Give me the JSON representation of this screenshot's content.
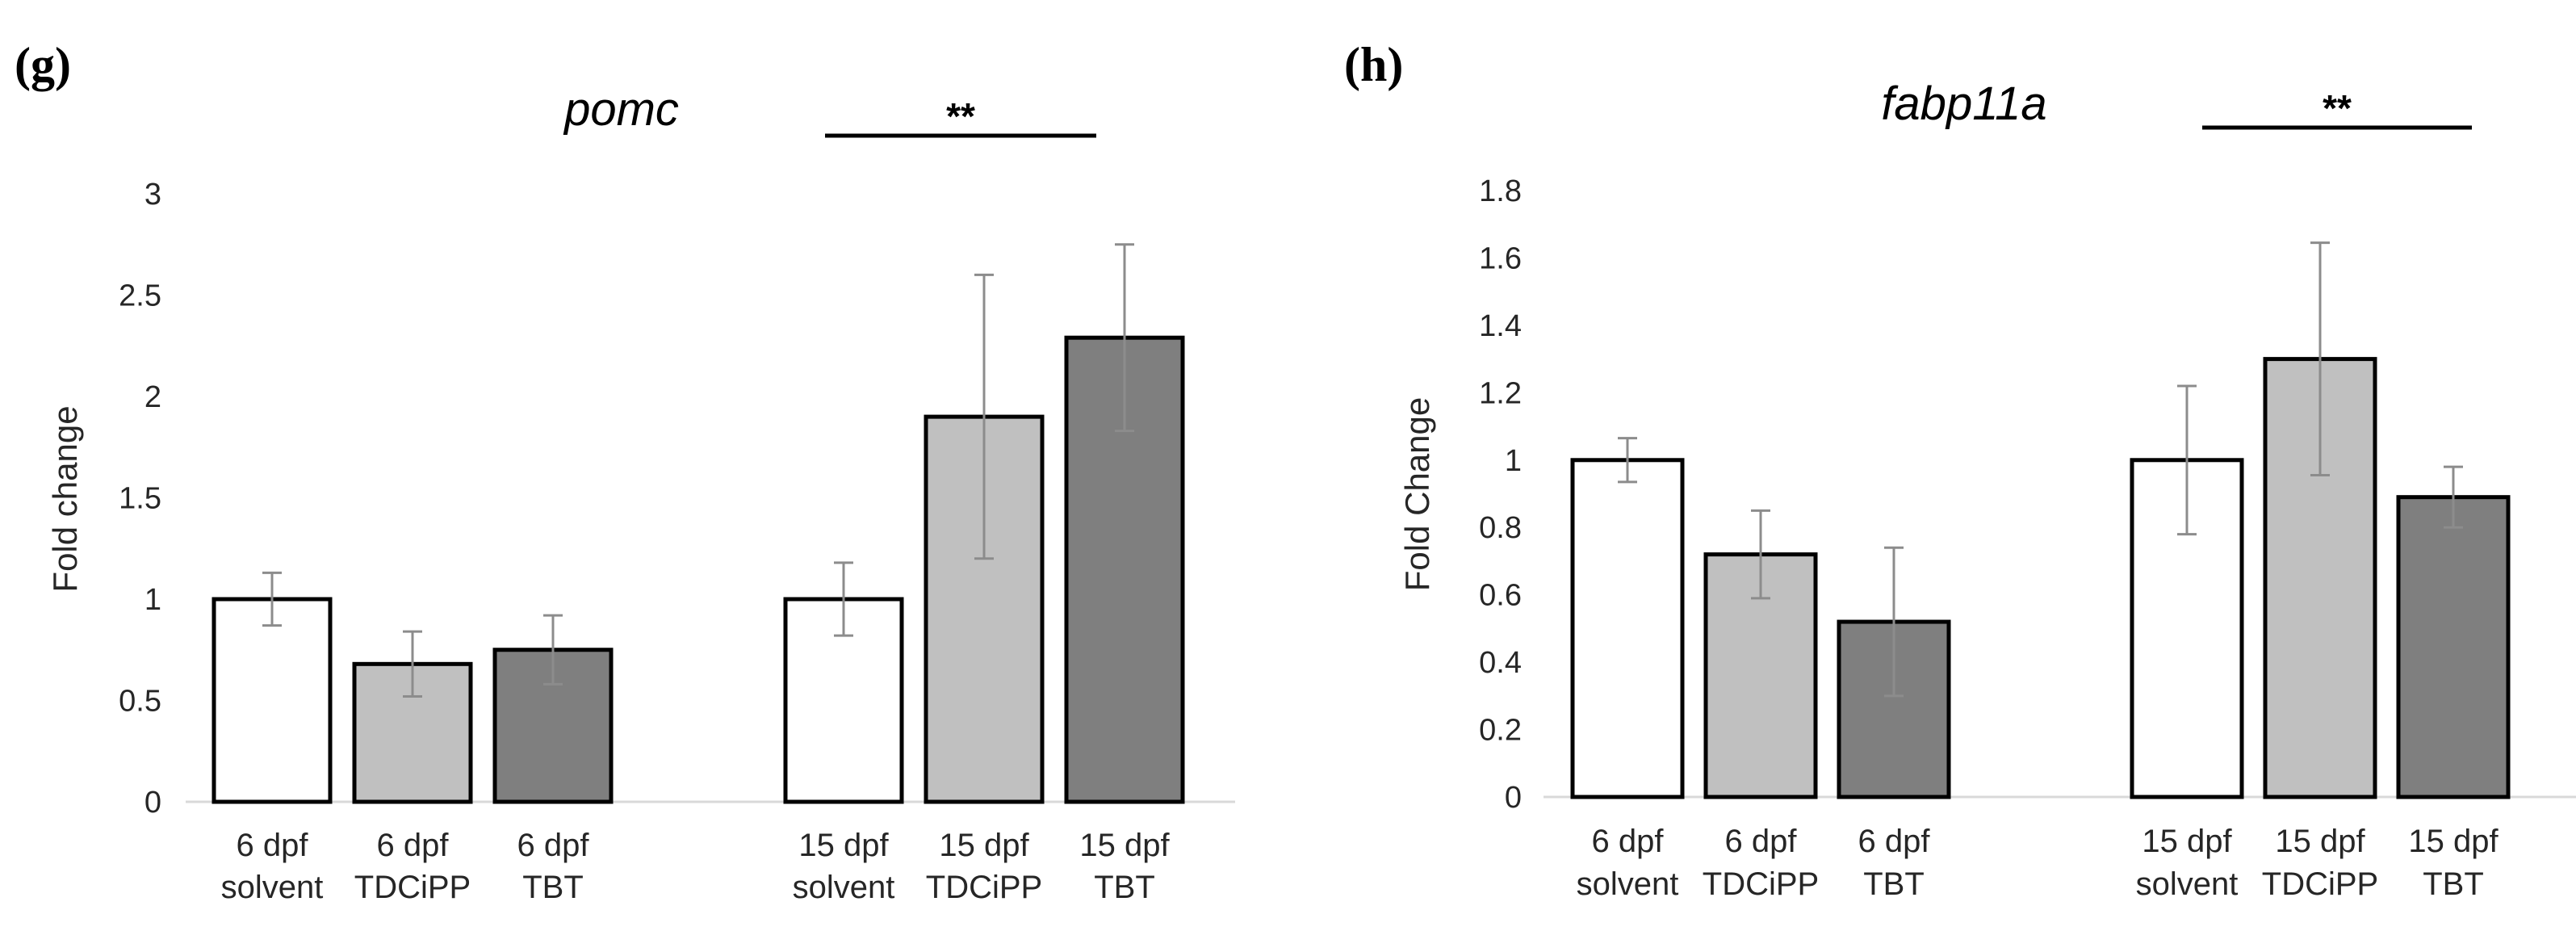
{
  "chart_data": [
    {
      "panel": "(g)",
      "type": "bar",
      "title": "pomc",
      "xlabel": "",
      "ylabel": "Fold change",
      "ylim": [
        0,
        3
      ],
      "yticks": [
        "0",
        "0.5",
        "1",
        "1.5",
        "2",
        "2.5",
        "3"
      ],
      "grid": false,
      "categories": [
        [
          "6 dpf",
          "solvent"
        ],
        [
          "6 dpf",
          "TDCiPP"
        ],
        [
          "6 dpf",
          "TBT"
        ],
        [
          "15 dpf",
          "solvent"
        ],
        [
          "15 dpf",
          "TDCiPP"
        ],
        [
          "15 dpf",
          "TBT"
        ]
      ],
      "values": [
        1.0,
        0.68,
        0.75,
        1.0,
        1.9,
        2.29
      ],
      "errors": [
        0.13,
        0.16,
        0.17,
        0.18,
        0.7,
        0.46
      ],
      "colors": [
        "#ffffff",
        "#c0c0c0",
        "#7f7f7f",
        "#ffffff",
        "#c0c0c0",
        "#7f7f7f"
      ],
      "significance": {
        "label": "**",
        "from_index": 3,
        "to_index": 5
      }
    },
    {
      "panel": "(h)",
      "type": "bar",
      "title": "fabp11a",
      "xlabel": "",
      "ylabel": "Fold Change",
      "ylim": [
        0,
        1.8
      ],
      "yticks": [
        "0",
        "0.2",
        "0.4",
        "0.6",
        "0.8",
        "1",
        "1.2",
        "1.4",
        "1.6",
        "1.8"
      ],
      "grid": false,
      "categories": [
        [
          "6 dpf",
          "solvent"
        ],
        [
          "6 dpf",
          "TDCiPP"
        ],
        [
          "6 dpf",
          "TBT"
        ],
        [
          "15 dpf",
          "solvent"
        ],
        [
          "15 dpf",
          "TDCiPP"
        ],
        [
          "15 dpf",
          "TBT"
        ]
      ],
      "values": [
        1.0,
        0.72,
        0.52,
        1.0,
        1.3,
        0.89
      ],
      "errors": [
        0.065,
        0.13,
        0.22,
        0.22,
        0.345,
        0.09
      ],
      "colors": [
        "#ffffff",
        "#c0c0c0",
        "#7f7f7f",
        "#ffffff",
        "#c0c0c0",
        "#7f7f7f"
      ],
      "significance": {
        "label": "**",
        "from_index": 3,
        "to_index": 5
      }
    }
  ]
}
